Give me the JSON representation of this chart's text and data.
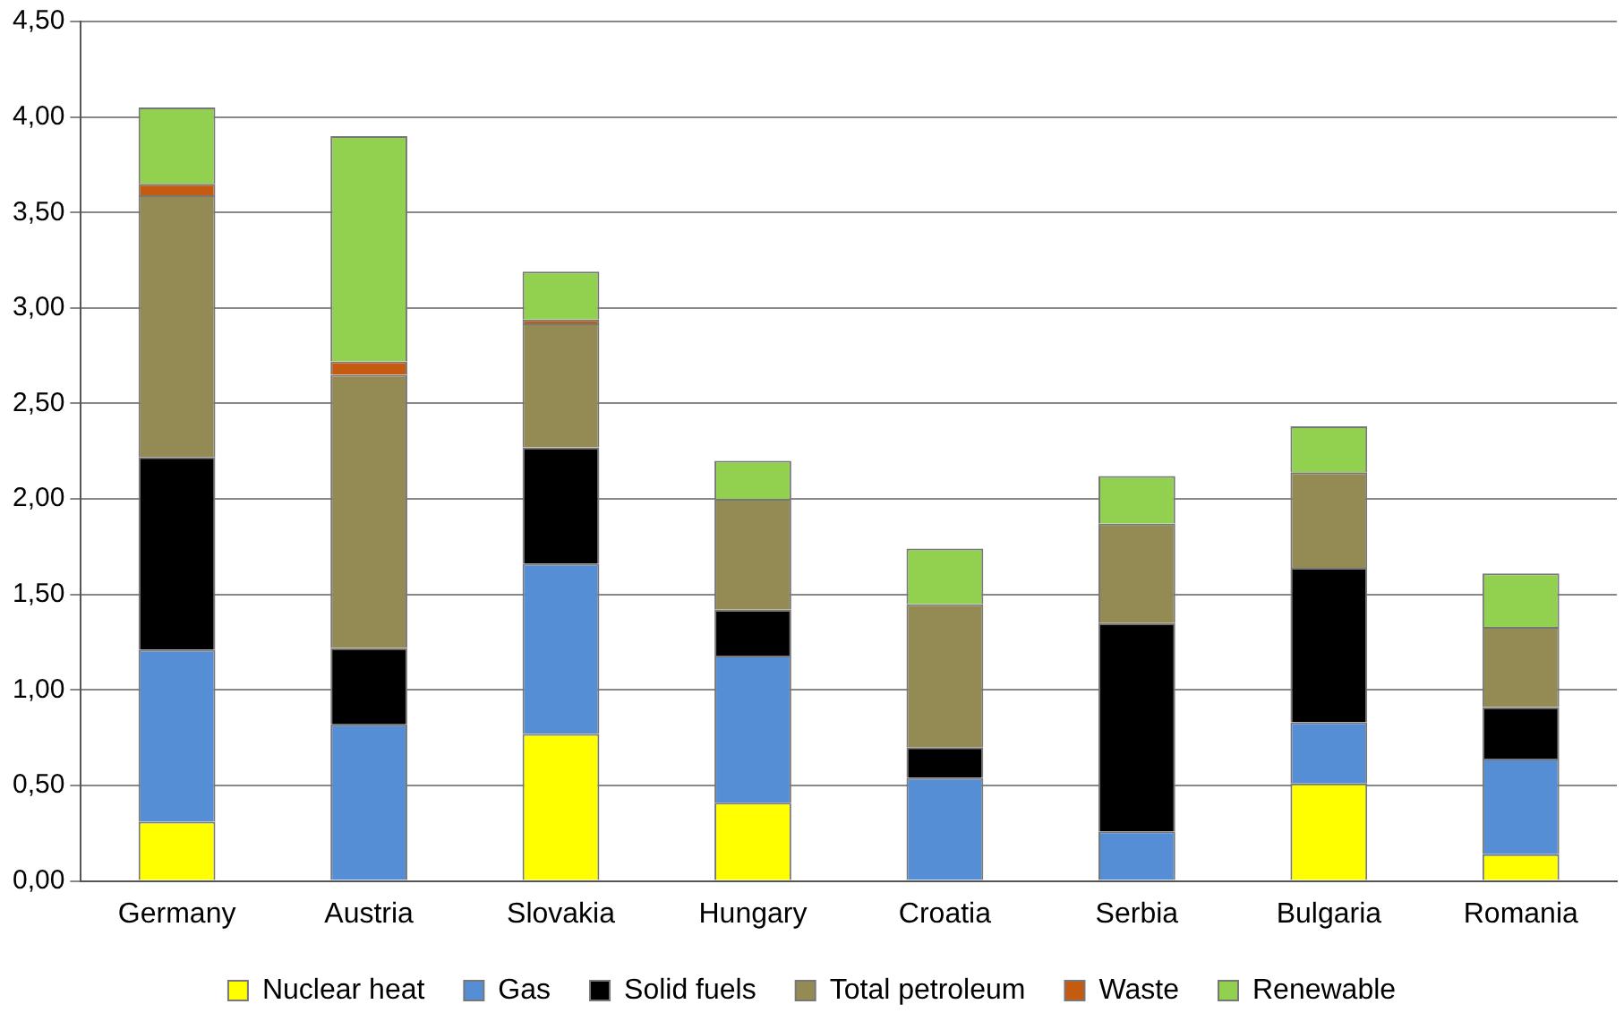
{
  "chart_data": {
    "type": "bar",
    "stacked": true,
    "categories": [
      "Germany",
      "Austria",
      "Slovakia",
      "Hungary",
      "Croatia",
      "Serbia",
      "Bulgaria",
      "Romania"
    ],
    "series": [
      {
        "name": "Nuclear heat",
        "color": "#ffff00",
        "values": [
          0.31,
          0,
          0.77,
          0.41,
          0,
          0,
          0.51,
          0.14
        ]
      },
      {
        "name": "Gas",
        "color": "#558ed5",
        "values": [
          0.9,
          0.82,
          0.89,
          0.77,
          0.54,
          0.26,
          0.32,
          0.5
        ]
      },
      {
        "name": "Solid fuels",
        "color": "#000000",
        "values": [
          1.01,
          0.4,
          0.61,
          0.24,
          0.16,
          1.09,
          0.81,
          0.27
        ]
      },
      {
        "name": "Total petroleum",
        "color": "#948a54",
        "values": [
          1.37,
          1.43,
          0.65,
          0.58,
          0.75,
          0.52,
          0.5,
          0.42
        ]
      },
      {
        "name": "Waste",
        "color": "#c55a11",
        "values": [
          0.06,
          0.07,
          0.02,
          0,
          0,
          0,
          0,
          0
        ]
      },
      {
        "name": "Renewable",
        "color": "#92d050",
        "values": [
          0.4,
          1.18,
          0.25,
          0.2,
          0.29,
          0.25,
          0.24,
          0.28
        ]
      }
    ],
    "ylim": [
      0,
      4.5
    ],
    "yticks": [
      {
        "value": 0,
        "label": "0,00"
      },
      {
        "value": 0.5,
        "label": "0,50"
      },
      {
        "value": 1,
        "label": "1,00"
      },
      {
        "value": 1.5,
        "label": "1,50"
      },
      {
        "value": 2,
        "label": "2,00"
      },
      {
        "value": 2.5,
        "label": "2,50"
      },
      {
        "value": 3,
        "label": "3,00"
      },
      {
        "value": 3.5,
        "label": "3,50"
      },
      {
        "value": 4,
        "label": "4,00"
      },
      {
        "value": 4.5,
        "label": "4,50"
      }
    ],
    "grid": "y",
    "legend": "bottom"
  }
}
